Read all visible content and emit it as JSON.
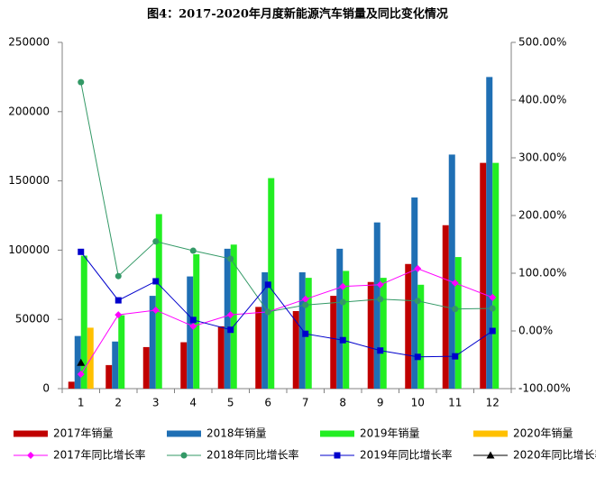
{
  "chart_data": {
    "type": "bar-line",
    "title": "图4：2017-2020年月度新能源汽车销量及同比变化情况",
    "categories": [
      "1",
      "2",
      "3",
      "4",
      "5",
      "6",
      "7",
      "8",
      "9",
      "10",
      "11",
      "12"
    ],
    "ylim": [
      0,
      250000
    ],
    "yticks": [
      0,
      50000,
      100000,
      150000,
      200000,
      250000
    ],
    "y2lim": [
      -100,
      500
    ],
    "y2ticks": [
      {
        "value": -100,
        "label": "-100.00%"
      },
      {
        "value": 0,
        "label": "0.00%"
      },
      {
        "value": 100,
        "label": "100.00%"
      },
      {
        "value": 200,
        "label": "200.00%"
      },
      {
        "value": 300,
        "label": "300.00%"
      },
      {
        "value": 400,
        "label": "400.00%"
      },
      {
        "value": 500,
        "label": "500.00%"
      }
    ],
    "series": [
      {
        "name": "2017年销量",
        "type": "bar",
        "color": "#c00000",
        "values": [
          5000,
          17000,
          30000,
          33500,
          45000,
          59000,
          56000,
          67000,
          77000,
          90000,
          118000,
          163000
        ]
      },
      {
        "name": "2018年销量",
        "type": "bar",
        "color": "#1f6fb4",
        "values": [
          38000,
          34000,
          67000,
          81000,
          101000,
          84000,
          84000,
          101000,
          120000,
          138000,
          169000,
          225000
        ]
      },
      {
        "name": "2019年销量",
        "type": "bar",
        "color": "#22ee22",
        "values": [
          96000,
          53000,
          126000,
          97000,
          104000,
          152000,
          80000,
          85000,
          80000,
          75000,
          95000,
          163000
        ]
      },
      {
        "name": "2020年销量",
        "type": "bar",
        "color": "#ffc000",
        "values": [
          44000,
          null,
          null,
          null,
          null,
          null,
          null,
          null,
          null,
          null,
          null,
          null
        ]
      },
      {
        "name": "2017年同比增长率",
        "type": "line",
        "axis": "y2",
        "color": "#ff00ff",
        "marker": "diamond",
        "values": [
          -75,
          28,
          36,
          8,
          28,
          33,
          55,
          77,
          80,
          108,
          83,
          58
        ]
      },
      {
        "name": "2018年同比增长率",
        "type": "line",
        "axis": "y2",
        "color": "#339966",
        "marker": "circle",
        "values": [
          431,
          95,
          155,
          139,
          125,
          33,
          45,
          50,
          55,
          52,
          38,
          39
        ]
      },
      {
        "name": "2019年同比增长率",
        "type": "line",
        "axis": "y2",
        "color": "#0000cc",
        "marker": "square",
        "values": [
          137,
          53,
          86,
          19,
          2,
          80,
          -5,
          -16,
          -34,
          -45,
          -44,
          0
        ]
      },
      {
        "name": "2020年同比增长率",
        "type": "line",
        "axis": "y2",
        "color": "#000000",
        "marker": "triangle",
        "values": [
          -55,
          null,
          null,
          null,
          null,
          null,
          null,
          null,
          null,
          null,
          null,
          null
        ]
      }
    ]
  }
}
